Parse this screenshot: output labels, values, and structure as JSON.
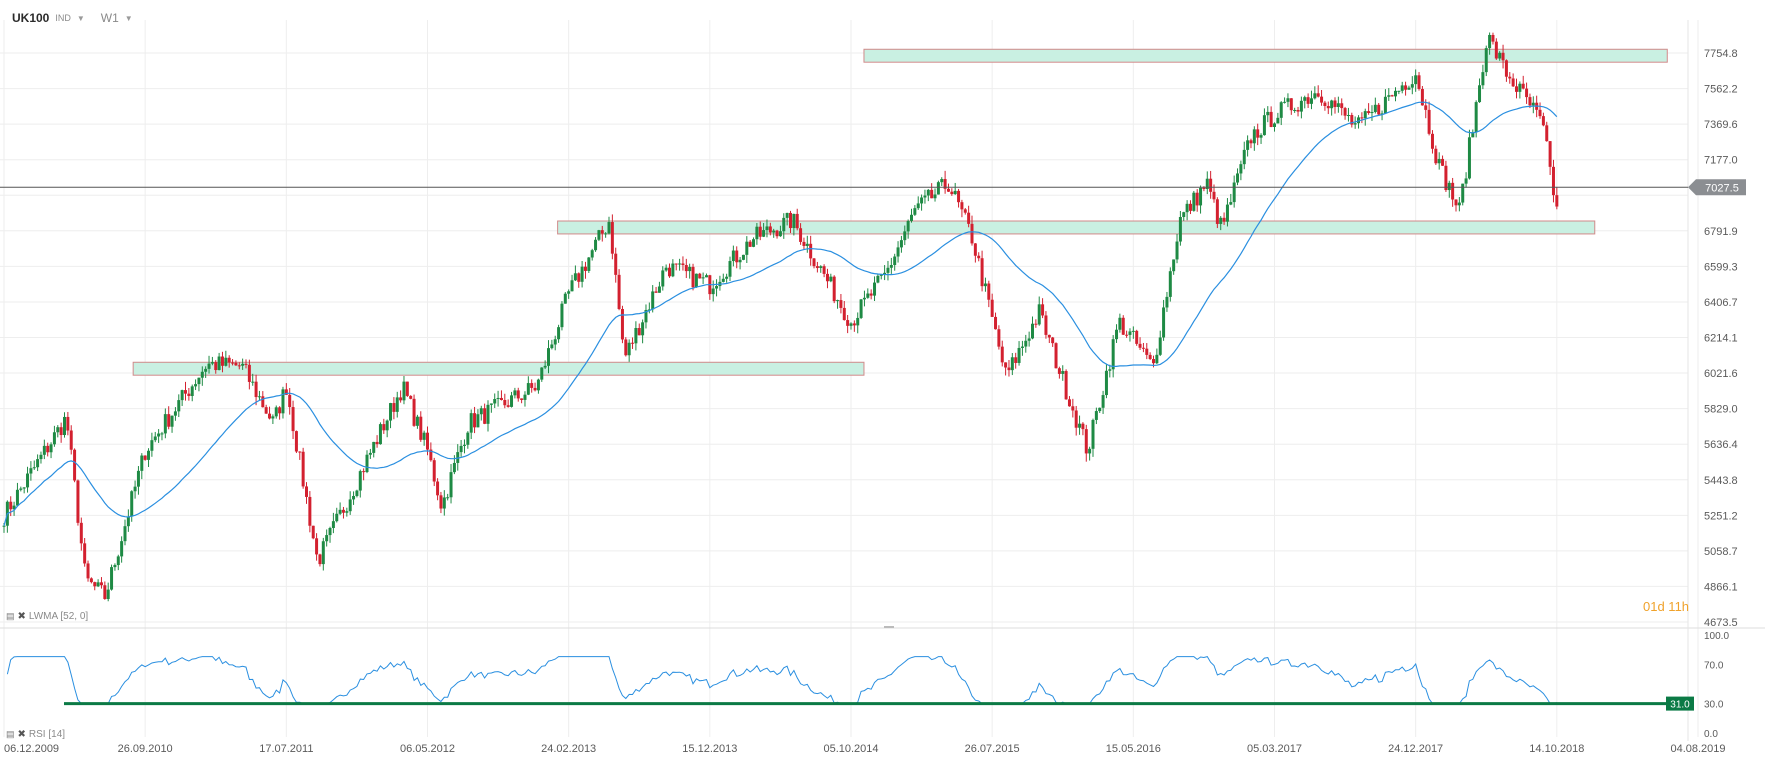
{
  "header": {
    "symbol": "UK100",
    "market": "IND",
    "timeframe": "W1"
  },
  "indicators": {
    "lwma": "LWMA [52, 0]",
    "rsi": "RSI [14]"
  },
  "countdown": "01d 11h",
  "colors": {
    "up": "#1e8a44",
    "down": "#d3202f",
    "ma": "#2a8fe0",
    "rsi": "#2a8fe0",
    "zone_fill": "#c9f0e2",
    "zone_border": "#d18a8a",
    "current_line": "#555555",
    "rsi_level": "#0b7a45",
    "grid": "#eeeeee"
  },
  "chart_data": [
    {
      "type": "candlestick",
      "price_axis_ticks": [
        "7754.8",
        "7562.2",
        "7369.6",
        "7177.0",
        "6984.3",
        "6791.9",
        "6599.3",
        "6406.7",
        "6214.1",
        "6021.6",
        "5829.0",
        "5636.4",
        "5443.8",
        "5251.2",
        "5058.7",
        "4866.1",
        "4673.5"
      ],
      "date_axis_ticks": [
        "06.12.2009",
        "26.09.2010",
        "17.07.2011",
        "06.05.2012",
        "24.02.2013",
        "15.12.2013",
        "05.10.2014",
        "26.07.2015",
        "15.05.2016",
        "05.03.2017",
        "24.12.2017",
        "14.10.2018",
        "04.08.2019"
      ],
      "ylim": [
        4673.5,
        7850
      ],
      "current_price": "7027.5",
      "support_resistance_zones": [
        {
          "from": "2010-09",
          "to": "2014-11",
          "low": 6010,
          "high": 6080
        },
        {
          "from": "2013-02",
          "to": "2019-01",
          "low": 6775,
          "high": 6845
        },
        {
          "from": "2014-11",
          "to": "2019-06",
          "low": 7705,
          "high": 7775
        }
      ],
      "price_path": [
        [
          "2009-12-06",
          5250
        ],
        [
          "2010-04-15",
          5780
        ],
        [
          "2010-05-25",
          4900
        ],
        [
          "2010-07-05",
          4810
        ],
        [
          "2010-09-26",
          5600
        ],
        [
          "2011-02-01",
          6070
        ],
        [
          "2011-04-15",
          6060
        ],
        [
          "2011-06-20",
          5750
        ],
        [
          "2011-07-17",
          5950
        ],
        [
          "2011-09-20",
          5000
        ],
        [
          "2012-03-15",
          5950
        ],
        [
          "2012-05-06",
          5600
        ],
        [
          "2012-06-05",
          5300
        ],
        [
          "2012-07-30",
          5750
        ],
        [
          "2012-12-20",
          5950
        ],
        [
          "2013-02-24",
          6450
        ],
        [
          "2013-05-20",
          6850
        ],
        [
          "2013-06-20",
          6100
        ],
        [
          "2013-09-15",
          6600
        ],
        [
          "2013-12-15",
          6500
        ],
        [
          "2014-03-15",
          6750
        ],
        [
          "2014-06-05",
          6850
        ],
        [
          "2014-10-05",
          6300
        ],
        [
          "2014-12-15",
          6550
        ],
        [
          "2015-02-15",
          6900
        ],
        [
          "2015-04-26",
          7050
        ],
        [
          "2015-06-15",
          6750
        ],
        [
          "2015-08-24",
          6000
        ],
        [
          "2015-11-01",
          6350
        ],
        [
          "2016-02-10",
          5600
        ],
        [
          "2016-04-15",
          6300
        ],
        [
          "2016-05-15",
          6200
        ],
        [
          "2016-06-25",
          6050
        ],
        [
          "2016-08-20",
          6850
        ],
        [
          "2016-10-15",
          7050
        ],
        [
          "2016-11-15",
          6800
        ],
        [
          "2017-01-15",
          7300
        ],
        [
          "2017-03-05",
          7420
        ],
        [
          "2017-06-05",
          7550
        ],
        [
          "2017-08-25",
          7350
        ],
        [
          "2017-10-25",
          7500
        ],
        [
          "2017-12-24",
          7650
        ],
        [
          "2018-02-10",
          7150
        ],
        [
          "2018-03-25",
          6900
        ],
        [
          "2018-05-22",
          7850
        ],
        [
          "2018-06-30",
          7650
        ],
        [
          "2018-08-25",
          7450
        ],
        [
          "2018-09-15",
          7350
        ],
        [
          "2018-10-14",
          6900
        ]
      ],
      "moving_average": {
        "name": "LWMA [52, 0]"
      }
    },
    {
      "type": "line",
      "title": "RSI [14]",
      "y_ticks": [
        "100.0",
        "70.0",
        "30.0",
        "0.0"
      ],
      "ylim": [
        0,
        100
      ],
      "level": 30,
      "current_value": "31.0"
    }
  ]
}
